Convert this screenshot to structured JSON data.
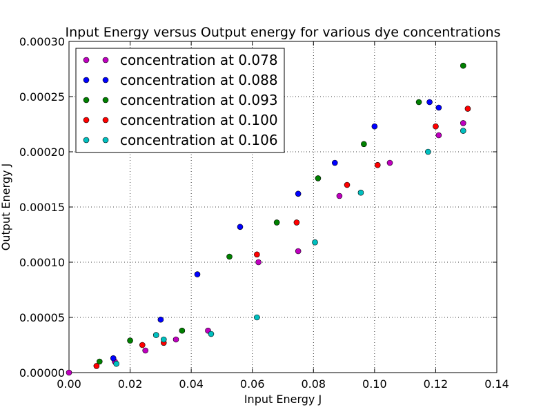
{
  "chart_data": {
    "type": "scatter",
    "title": "Input Energy versus Output energy for various dye concentrations",
    "xlabel": "Input Energy J",
    "ylabel": "Output Energy J",
    "xlim": [
      0.0,
      0.14
    ],
    "ylim": [
      0.0,
      0.0003
    ],
    "x_ticks": [
      "0.00",
      "0.02",
      "0.04",
      "0.06",
      "0.08",
      "0.10",
      "0.12",
      "0.14"
    ],
    "y_ticks": [
      "0.00000",
      "0.00005",
      "0.00010",
      "0.00015",
      "0.00020",
      "0.00025",
      "0.00030"
    ],
    "grid": true,
    "legend_position": "top-left",
    "series": [
      {
        "name": "concentration at 0.078",
        "color": "#bf00bf",
        "points": [
          [
            0.0,
            0.0
          ],
          [
            0.015,
            1e-05
          ],
          [
            0.025,
            2e-05
          ],
          [
            0.035,
            3e-05
          ],
          [
            0.0455,
            3.8e-05
          ],
          [
            0.062,
            0.0001
          ],
          [
            0.075,
            0.00011
          ],
          [
            0.0885,
            0.00016
          ],
          [
            0.105,
            0.00019
          ],
          [
            0.121,
            0.000215
          ],
          [
            0.129,
            0.000226
          ]
        ]
      },
      {
        "name": "concentration at 0.088",
        "color": "#0000ff",
        "points": [
          [
            0.0145,
            1.3e-05
          ],
          [
            0.03,
            4.8e-05
          ],
          [
            0.042,
            8.9e-05
          ],
          [
            0.056,
            0.000132
          ],
          [
            0.075,
            0.000162
          ],
          [
            0.087,
            0.00019
          ],
          [
            0.1,
            0.000223
          ],
          [
            0.118,
            0.000245
          ],
          [
            0.121,
            0.00024
          ]
        ]
      },
      {
        "name": "concentration at 0.093",
        "color": "#008000",
        "points": [
          [
            0.01,
            1e-05
          ],
          [
            0.02,
            2.9e-05
          ],
          [
            0.037,
            3.8e-05
          ],
          [
            0.0525,
            0.000105
          ],
          [
            0.068,
            0.000136
          ],
          [
            0.0815,
            0.000176
          ],
          [
            0.0965,
            0.000207
          ],
          [
            0.1145,
            0.000245
          ],
          [
            0.129,
            0.000278
          ]
        ]
      },
      {
        "name": "concentration at 0.100",
        "color": "#ff0000",
        "points": [
          [
            0.009,
            6e-06
          ],
          [
            0.024,
            2.5e-05
          ],
          [
            0.031,
            2.7e-05
          ],
          [
            0.0615,
            0.000107
          ],
          [
            0.0745,
            0.000136
          ],
          [
            0.091,
            0.00017
          ],
          [
            0.101,
            0.000188
          ],
          [
            0.12,
            0.000223
          ],
          [
            0.1305,
            0.000239
          ]
        ]
      },
      {
        "name": "concentration at 0.106",
        "color": "#00bfbf",
        "points": [
          [
            0.0155,
            8e-06
          ],
          [
            0.0285,
            3.4e-05
          ],
          [
            0.031,
            3e-05
          ],
          [
            0.0465,
            3.5e-05
          ],
          [
            0.0615,
            5e-05
          ],
          [
            0.0805,
            0.000118
          ],
          [
            0.0955,
            0.000163
          ],
          [
            0.1175,
            0.0002
          ],
          [
            0.129,
            0.000219
          ]
        ]
      }
    ]
  }
}
